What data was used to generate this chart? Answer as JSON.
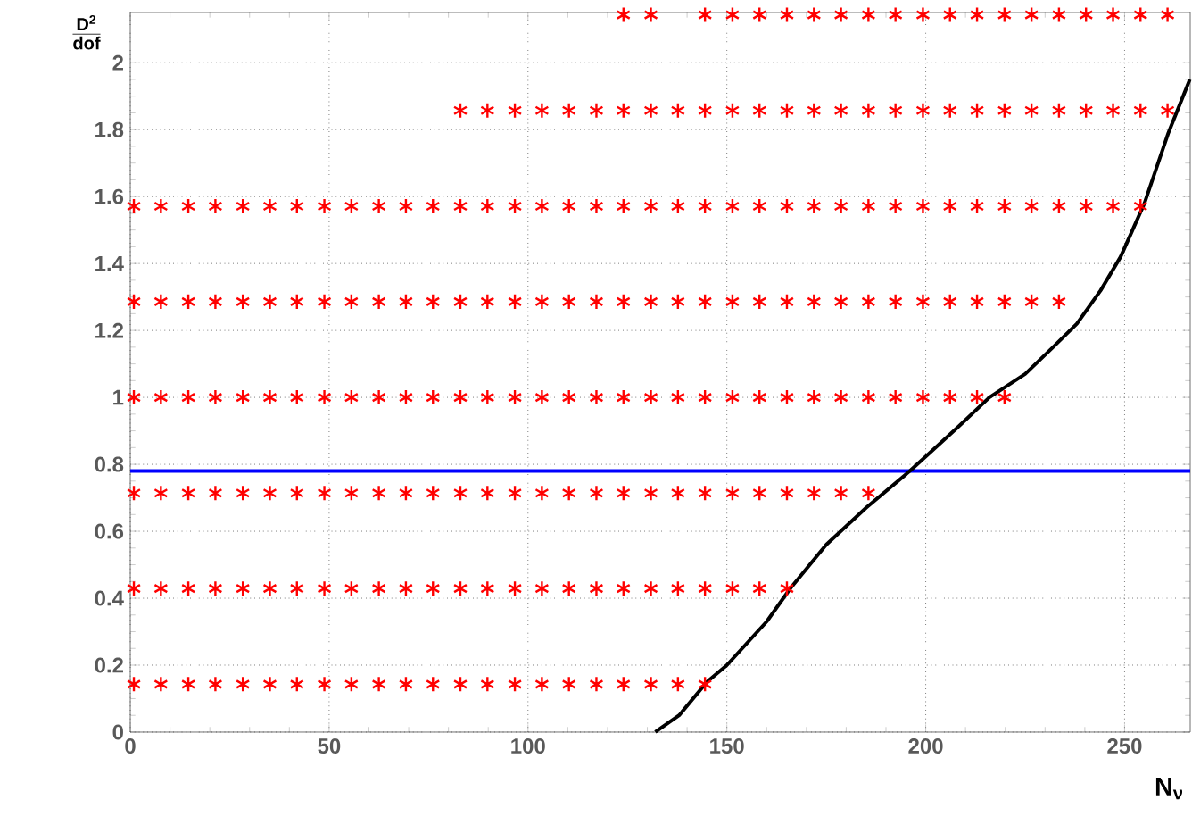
{
  "chart_data": {
    "type": "scatter",
    "xlabel": "N$_{ν}$",
    "ylabel": "\\frac{\\mathbf{D^2}}{\\mathbf{dof}}",
    "xlim": [
      0,
      266.5
    ],
    "ylim": [
      0,
      2.15
    ],
    "xticks": [
      0,
      50,
      100,
      150,
      200,
      250
    ],
    "yticks": [
      0,
      0.2,
      0.4,
      0.6,
      0.8,
      1,
      1.2,
      1.4,
      1.6,
      1.8,
      2
    ],
    "grid": true,
    "marker": "cross",
    "ref_lines": [
      {
        "axis": "y",
        "value": 0.78,
        "color": "#0000ff"
      }
    ],
    "series": [
      {
        "color": "#ff0000",
        "x": [
          0.9,
          7.7,
          14.6,
          21.4,
          28.3,
          35.1,
          41.9,
          48.8,
          55.6,
          62.5,
          69.3,
          76.1,
          83.0,
          89.8,
          96.7,
          103.5,
          110.3,
          117.2,
          124.0,
          130.9,
          137.7,
          144.5
        ],
        "values": [
          0.143,
          0.143,
          0.143,
          0.143,
          0.143,
          0.143,
          0.143,
          0.143,
          0.143,
          0.143,
          0.143,
          0.143,
          0.143,
          0.143,
          0.143,
          0.143,
          0.143,
          0.143,
          0.143,
          0.143,
          0.143,
          0.143
        ]
      },
      {
        "color": "#ff0000",
        "x": [
          0.9,
          7.7,
          14.6,
          21.4,
          28.3,
          35.1,
          41.9,
          48.8,
          55.6,
          62.5,
          69.3,
          76.1,
          83.0,
          89.8,
          96.7,
          103.5,
          110.3,
          117.2,
          124.0,
          130.9,
          137.7,
          144.5,
          151.4,
          158.2,
          165.1
        ],
        "values": [
          0.429,
          0.429,
          0.429,
          0.429,
          0.429,
          0.429,
          0.429,
          0.429,
          0.429,
          0.429,
          0.429,
          0.429,
          0.429,
          0.429,
          0.429,
          0.429,
          0.429,
          0.429,
          0.429,
          0.429,
          0.429,
          0.429,
          0.429,
          0.429,
          0.429
        ]
      },
      {
        "color": "#ff0000",
        "x": [
          0.9,
          7.7,
          14.6,
          21.4,
          28.3,
          35.1,
          41.9,
          48.8,
          55.6,
          62.5,
          69.3,
          76.1,
          83.0,
          89.8,
          96.7,
          103.5,
          110.3,
          117.2,
          124.0,
          130.9,
          137.7,
          144.5,
          151.4,
          158.2,
          165.1,
          171.9,
          178.7,
          185.6
        ],
        "values": [
          0.714,
          0.714,
          0.714,
          0.714,
          0.714,
          0.714,
          0.714,
          0.714,
          0.714,
          0.714,
          0.714,
          0.714,
          0.714,
          0.714,
          0.714,
          0.714,
          0.714,
          0.714,
          0.714,
          0.714,
          0.714,
          0.714,
          0.714,
          0.714,
          0.714,
          0.714,
          0.714,
          0.714
        ]
      },
      {
        "color": "#ff0000",
        "x": [
          0.9,
          7.7,
          14.6,
          21.4,
          28.3,
          35.1,
          41.9,
          48.8,
          55.6,
          62.5,
          69.3,
          76.1,
          83.0,
          89.8,
          96.7,
          103.5,
          110.3,
          117.2,
          124.0,
          130.9,
          137.7,
          144.5,
          151.4,
          158.2,
          165.1,
          171.9,
          178.7,
          185.6,
          192.4,
          199.3,
          206.1,
          212.9,
          219.8
        ],
        "values": [
          1,
          1,
          1,
          1,
          1,
          1,
          1,
          1,
          1,
          1,
          1,
          1,
          1,
          1,
          1,
          1,
          1,
          1,
          1,
          1,
          1,
          1,
          1,
          1,
          1,
          1,
          1,
          1,
          1,
          1,
          1,
          1,
          1
        ]
      },
      {
        "color": "#ff0000",
        "x": [
          0.9,
          7.7,
          14.6,
          21.4,
          28.3,
          35.1,
          41.9,
          48.8,
          55.6,
          62.5,
          69.3,
          76.1,
          83.0,
          89.8,
          96.7,
          103.5,
          110.3,
          117.2,
          124.0,
          130.9,
          137.7,
          144.5,
          151.4,
          158.2,
          165.1,
          171.9,
          178.7,
          185.6,
          192.4,
          199.3,
          206.1,
          212.9,
          219.8,
          226.6,
          233.5
        ],
        "values": [
          1.286,
          1.286,
          1.286,
          1.286,
          1.286,
          1.286,
          1.286,
          1.286,
          1.286,
          1.286,
          1.286,
          1.286,
          1.286,
          1.286,
          1.286,
          1.286,
          1.286,
          1.286,
          1.286,
          1.286,
          1.286,
          1.286,
          1.286,
          1.286,
          1.286,
          1.286,
          1.286,
          1.286,
          1.286,
          1.286,
          1.286,
          1.286,
          1.286,
          1.286,
          1.286
        ]
      },
      {
        "color": "#ff0000",
        "x": [
          0.9,
          7.7,
          14.6,
          21.4,
          28.3,
          35.1,
          41.9,
          48.8,
          55.6,
          62.5,
          69.3,
          76.1,
          83.0,
          89.8,
          96.7,
          103.5,
          110.3,
          117.2,
          124.0,
          130.9,
          137.7,
          144.5,
          151.4,
          158.2,
          165.1,
          171.9,
          178.7,
          185.6,
          192.4,
          199.3,
          206.1,
          212.9,
          219.8,
          226.6,
          233.5,
          240.3,
          247.1,
          254.0
        ],
        "values": [
          1.571,
          1.571,
          1.571,
          1.571,
          1.571,
          1.571,
          1.571,
          1.571,
          1.571,
          1.571,
          1.571,
          1.571,
          1.571,
          1.571,
          1.571,
          1.571,
          1.571,
          1.571,
          1.571,
          1.571,
          1.571,
          1.571,
          1.571,
          1.571,
          1.571,
          1.571,
          1.571,
          1.571,
          1.571,
          1.571,
          1.571,
          1.571,
          1.571,
          1.571,
          1.571,
          1.571,
          1.571,
          1.571
        ]
      },
      {
        "color": "#ff0000",
        "x": [
          83.0,
          89.8,
          96.7,
          103.5,
          110.3,
          117.2,
          124.0,
          130.9,
          137.7,
          144.5,
          151.4,
          158.2,
          165.1,
          171.9,
          178.7,
          185.6,
          192.4,
          199.3,
          206.1,
          212.9,
          219.8,
          226.6,
          233.5,
          240.3,
          247.1,
          254.0,
          260.8
        ],
        "values": [
          1.857,
          1.857,
          1.857,
          1.857,
          1.857,
          1.857,
          1.857,
          1.857,
          1.857,
          1.857,
          1.857,
          1.857,
          1.857,
          1.857,
          1.857,
          1.857,
          1.857,
          1.857,
          1.857,
          1.857,
          1.857,
          1.857,
          1.857,
          1.857,
          1.857,
          1.857,
          1.857
        ]
      },
      {
        "color": "#ff0000",
        "x": [
          124.0,
          130.9,
          144.5,
          151.4,
          158.2,
          165.1,
          171.9,
          178.7,
          185.6,
          192.4,
          199.3,
          206.1,
          212.9,
          219.8,
          226.6,
          233.5,
          240.3,
          247.1,
          254.0,
          260.8
        ],
        "values": [
          2.143,
          2.143,
          2.143,
          2.143,
          2.143,
          2.143,
          2.143,
          2.143,
          2.143,
          2.143,
          2.143,
          2.143,
          2.143,
          2.143,
          2.143,
          2.143,
          2.143,
          2.143,
          2.143,
          2.143
        ]
      },
      {
        "type": "line",
        "marker": "none",
        "line_style": "solid",
        "color": "#000000",
        "x": [
          132,
          138,
          145,
          150,
          160,
          166,
          175,
          185,
          196,
          208,
          216,
          225,
          232,
          238,
          244,
          249,
          255,
          261,
          266.4
        ],
        "values": [
          0,
          0.05,
          0.15,
          0.2,
          0.33,
          0.43,
          0.56,
          0.67,
          0.78,
          0.91,
          1.0,
          1.07,
          1.15,
          1.22,
          1.32,
          1.42,
          1.58,
          1.79,
          1.95
        ]
      }
    ]
  }
}
